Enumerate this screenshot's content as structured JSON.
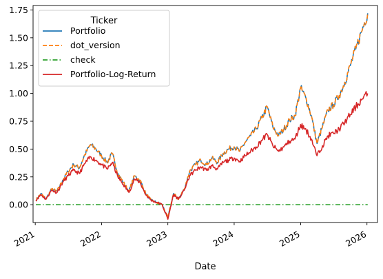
{
  "chart_data": {
    "type": "line",
    "xlabel": "Date",
    "ylabel": "",
    "title": "",
    "xlim": [
      "2020-12-20",
      "2026-02-28"
    ],
    "ylim": [
      -0.16,
      1.79
    ],
    "x_ticks": [
      "2021-01-01",
      "2022-01-01",
      "2023-01-01",
      "2024-01-01",
      "2025-01-01",
      "2026-01-01"
    ],
    "x_tick_labels": [
      "2021",
      "2022",
      "2023",
      "2024",
      "2025",
      "2026"
    ],
    "y_ticks": [
      0.0,
      0.25,
      0.5,
      0.75,
      1.0,
      1.25,
      1.5,
      1.75
    ],
    "y_tick_labels": [
      "0.00",
      "0.25",
      "0.50",
      "0.75",
      "1.00",
      "1.25",
      "1.50",
      "1.75"
    ],
    "grid": false,
    "legend": {
      "title": "Ticker",
      "placement": "upper-left",
      "entries": [
        "Portfolio",
        "dot_version",
        "check",
        "Portfolio-Log-Return"
      ]
    },
    "x": [
      "2021-01-04",
      "2021-02-01",
      "2021-03-01",
      "2021-04-01",
      "2021-05-01",
      "2021-06-01",
      "2021-07-01",
      "2021-08-01",
      "2021-09-01",
      "2021-10-01",
      "2021-11-01",
      "2021-12-01",
      "2022-01-01",
      "2022-02-01",
      "2022-03-01",
      "2022-04-01",
      "2022-05-01",
      "2022-06-01",
      "2022-07-01",
      "2022-08-01",
      "2022-09-01",
      "2022-10-01",
      "2022-11-01",
      "2022-12-01",
      "2023-01-01",
      "2023-02-01",
      "2023-03-01",
      "2023-04-01",
      "2023-05-01",
      "2023-06-01",
      "2023-07-01",
      "2023-08-01",
      "2023-09-01",
      "2023-10-01",
      "2023-11-01",
      "2023-12-01",
      "2024-01-01",
      "2024-02-01",
      "2024-03-01",
      "2024-04-01",
      "2024-05-01",
      "2024-06-01",
      "2024-07-01",
      "2024-08-01",
      "2024-09-01",
      "2024-10-01",
      "2024-11-01",
      "2024-12-01",
      "2025-01-01",
      "2025-02-01",
      "2025-03-01",
      "2025-04-01",
      "2025-05-01",
      "2025-06-01",
      "2025-07-01",
      "2025-08-01",
      "2025-09-01",
      "2025-10-01",
      "2025-11-01",
      "2025-12-01",
      "2026-01-05"
    ],
    "series": [
      {
        "name": "Portfolio",
        "color": "#1f77b4",
        "style": "solid",
        "values": [
          0.04,
          0.1,
          0.05,
          0.14,
          0.12,
          0.22,
          0.3,
          0.36,
          0.33,
          0.45,
          0.54,
          0.5,
          0.44,
          0.38,
          0.46,
          0.28,
          0.2,
          0.12,
          0.26,
          0.22,
          0.1,
          0.04,
          0.02,
          0.0,
          -0.12,
          0.1,
          0.05,
          0.14,
          0.3,
          0.36,
          0.4,
          0.36,
          0.42,
          0.38,
          0.46,
          0.5,
          0.52,
          0.48,
          0.56,
          0.62,
          0.68,
          0.78,
          0.88,
          0.7,
          0.62,
          0.68,
          0.76,
          0.8,
          1.05,
          0.95,
          0.8,
          0.55,
          0.7,
          0.85,
          0.9,
          0.98,
          1.1,
          1.25,
          1.4,
          1.55,
          1.72
        ]
      },
      {
        "name": "dot_version",
        "color": "#ff7f0e",
        "style": "dashed",
        "values": [
          0.04,
          0.1,
          0.05,
          0.14,
          0.12,
          0.22,
          0.3,
          0.36,
          0.33,
          0.45,
          0.54,
          0.5,
          0.44,
          0.38,
          0.46,
          0.28,
          0.2,
          0.12,
          0.26,
          0.22,
          0.1,
          0.04,
          0.02,
          0.0,
          -0.12,
          0.1,
          0.05,
          0.14,
          0.3,
          0.36,
          0.4,
          0.36,
          0.42,
          0.38,
          0.46,
          0.5,
          0.52,
          0.48,
          0.56,
          0.62,
          0.68,
          0.78,
          0.88,
          0.7,
          0.62,
          0.68,
          0.76,
          0.8,
          1.05,
          0.95,
          0.8,
          0.55,
          0.7,
          0.85,
          0.9,
          0.98,
          1.1,
          1.25,
          1.4,
          1.55,
          1.72
        ]
      },
      {
        "name": "check",
        "color": "#2ca02c",
        "style": "dashdot",
        "values": [
          0,
          0,
          0,
          0,
          0,
          0,
          0,
          0,
          0,
          0,
          0,
          0,
          0,
          0,
          0,
          0,
          0,
          0,
          0,
          0,
          0,
          0,
          0,
          0,
          0,
          0,
          0,
          0,
          0,
          0,
          0,
          0,
          0,
          0,
          0,
          0,
          0,
          0,
          0,
          0,
          0,
          0,
          0,
          0,
          0,
          0,
          0,
          0,
          0,
          0,
          0,
          0,
          0,
          0,
          0,
          0,
          0,
          0,
          0,
          0,
          0
        ]
      },
      {
        "name": "Portfolio-Log-Return",
        "color": "#d62728",
        "style": "solid",
        "values": [
          0.04,
          0.09,
          0.05,
          0.13,
          0.11,
          0.2,
          0.26,
          0.31,
          0.28,
          0.37,
          0.43,
          0.4,
          0.36,
          0.32,
          0.38,
          0.25,
          0.18,
          0.11,
          0.23,
          0.2,
          0.09,
          0.04,
          0.02,
          0.0,
          -0.13,
          0.09,
          0.05,
          0.13,
          0.26,
          0.31,
          0.34,
          0.31,
          0.35,
          0.32,
          0.38,
          0.4,
          0.42,
          0.39,
          0.44,
          0.48,
          0.52,
          0.58,
          0.63,
          0.53,
          0.48,
          0.52,
          0.57,
          0.59,
          0.72,
          0.67,
          0.59,
          0.44,
          0.53,
          0.62,
          0.64,
          0.68,
          0.74,
          0.81,
          0.88,
          0.94,
          1.0
        ]
      }
    ]
  }
}
